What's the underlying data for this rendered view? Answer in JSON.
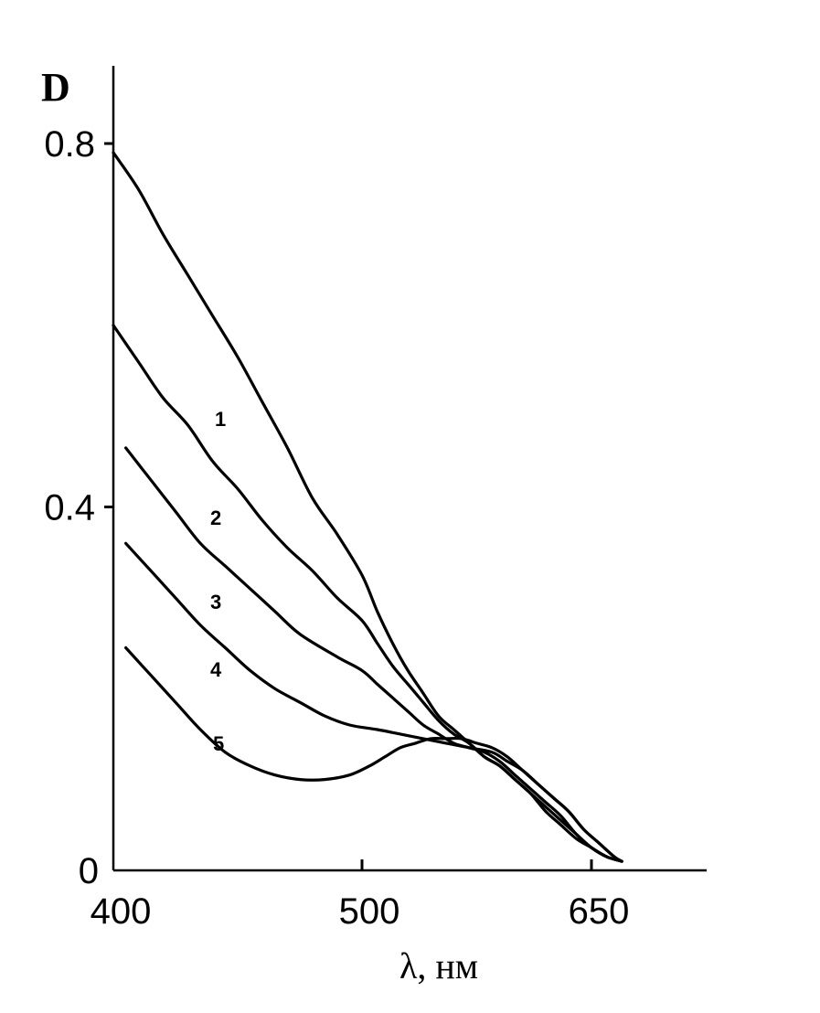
{
  "chart_data": {
    "type": "line",
    "title": "",
    "xlabel": "λ, нм",
    "ylabel": "D",
    "x_ticks": [
      {
        "value": 400,
        "label": "400"
      },
      {
        "value": 500,
        "label": "500"
      },
      {
        "value": 650,
        "label": "650"
      }
    ],
    "y_ticks": [
      {
        "value": 0,
        "label": "0"
      },
      {
        "value": 0.4,
        "label": "0.4"
      },
      {
        "value": 0.8,
        "label": "0.8"
      }
    ],
    "ylim": [
      0,
      0.87
    ],
    "grid": false,
    "series": [
      {
        "name": "1",
        "points": [
          [
            400,
            0.79
          ],
          [
            410,
            0.75
          ],
          [
            420,
            0.7
          ],
          [
            430,
            0.655
          ],
          [
            440,
            0.61
          ],
          [
            450,
            0.565
          ],
          [
            460,
            0.515
          ],
          [
            470,
            0.465
          ],
          [
            480,
            0.41
          ],
          [
            490,
            0.37
          ],
          [
            500,
            0.325
          ],
          [
            510,
            0.285
          ],
          [
            520,
            0.25
          ],
          [
            530,
            0.22
          ],
          [
            540,
            0.195
          ],
          [
            550,
            0.17
          ],
          [
            560,
            0.155
          ],
          [
            570,
            0.14
          ],
          [
            580,
            0.125
          ],
          [
            590,
            0.115
          ],
          [
            600,
            0.1
          ],
          [
            610,
            0.085
          ],
          [
            620,
            0.065
          ],
          [
            630,
            0.05
          ],
          [
            640,
            0.035
          ],
          [
            650,
            0.025
          ],
          [
            660,
            0.015
          ],
          [
            670,
            0.01
          ]
        ]
      },
      {
        "name": "2",
        "points": [
          [
            400,
            0.6
          ],
          [
            410,
            0.56
          ],
          [
            420,
            0.52
          ],
          [
            430,
            0.49
          ],
          [
            440,
            0.45
          ],
          [
            450,
            0.42
          ],
          [
            460,
            0.385
          ],
          [
            470,
            0.355
          ],
          [
            480,
            0.33
          ],
          [
            490,
            0.3
          ],
          [
            500,
            0.275
          ],
          [
            510,
            0.25
          ],
          [
            520,
            0.225
          ],
          [
            530,
            0.205
          ],
          [
            540,
            0.185
          ],
          [
            550,
            0.165
          ],
          [
            560,
            0.15
          ],
          [
            570,
            0.14
          ],
          [
            580,
            0.125
          ],
          [
            590,
            0.115
          ],
          [
            600,
            0.1
          ],
          [
            610,
            0.085
          ],
          [
            620,
            0.07
          ],
          [
            630,
            0.055
          ],
          [
            640,
            0.04
          ],
          [
            650,
            0.025
          ],
          [
            660,
            0.015
          ],
          [
            670,
            0.01
          ]
        ]
      },
      {
        "name": "3",
        "points": [
          [
            405,
            0.465
          ],
          [
            415,
            0.43
          ],
          [
            425,
            0.395
          ],
          [
            435,
            0.36
          ],
          [
            445,
            0.335
          ],
          [
            455,
            0.31
          ],
          [
            465,
            0.285
          ],
          [
            475,
            0.26
          ],
          [
            490,
            0.235
          ],
          [
            500,
            0.22
          ],
          [
            510,
            0.205
          ],
          [
            520,
            0.19
          ],
          [
            530,
            0.175
          ],
          [
            540,
            0.16
          ],
          [
            550,
            0.15
          ],
          [
            560,
            0.14
          ],
          [
            570,
            0.135
          ],
          [
            580,
            0.13
          ],
          [
            590,
            0.12
          ],
          [
            600,
            0.105
          ],
          [
            610,
            0.09
          ],
          [
            620,
            0.075
          ],
          [
            630,
            0.06
          ],
          [
            640,
            0.04
          ],
          [
            650,
            0.025
          ],
          [
            660,
            0.015
          ],
          [
            670,
            0.01
          ]
        ]
      },
      {
        "name": "4",
        "points": [
          [
            405,
            0.36
          ],
          [
            415,
            0.33
          ],
          [
            425,
            0.3
          ],
          [
            435,
            0.27
          ],
          [
            445,
            0.245
          ],
          [
            455,
            0.22
          ],
          [
            465,
            0.2
          ],
          [
            475,
            0.185
          ],
          [
            485,
            0.17
          ],
          [
            495,
            0.16
          ],
          [
            510,
            0.155
          ],
          [
            525,
            0.15
          ],
          [
            540,
            0.145
          ],
          [
            555,
            0.14
          ],
          [
            570,
            0.135
          ],
          [
            585,
            0.13
          ],
          [
            595,
            0.12
          ],
          [
            605,
            0.11
          ],
          [
            615,
            0.095
          ],
          [
            625,
            0.08
          ],
          [
            635,
            0.065
          ],
          [
            645,
            0.045
          ],
          [
            655,
            0.03
          ],
          [
            665,
            0.015
          ],
          [
            670,
            0.01
          ]
        ]
      },
      {
        "name": "5",
        "points": [
          [
            405,
            0.245
          ],
          [
            415,
            0.215
          ],
          [
            425,
            0.185
          ],
          [
            435,
            0.155
          ],
          [
            445,
            0.13
          ],
          [
            455,
            0.115
          ],
          [
            465,
            0.105
          ],
          [
            475,
            0.1
          ],
          [
            485,
            0.1
          ],
          [
            495,
            0.105
          ],
          [
            505,
            0.115
          ],
          [
            515,
            0.125
          ],
          [
            525,
            0.135
          ],
          [
            535,
            0.14
          ],
          [
            545,
            0.145
          ],
          [
            555,
            0.145
          ],
          [
            565,
            0.145
          ],
          [
            575,
            0.14
          ],
          [
            585,
            0.135
          ],
          [
            595,
            0.125
          ],
          [
            605,
            0.11
          ],
          [
            615,
            0.095
          ],
          [
            625,
            0.08
          ],
          [
            635,
            0.065
          ],
          [
            645,
            0.045
          ],
          [
            655,
            0.03
          ],
          [
            665,
            0.015
          ],
          [
            670,
            0.01
          ]
        ]
      }
    ]
  }
}
